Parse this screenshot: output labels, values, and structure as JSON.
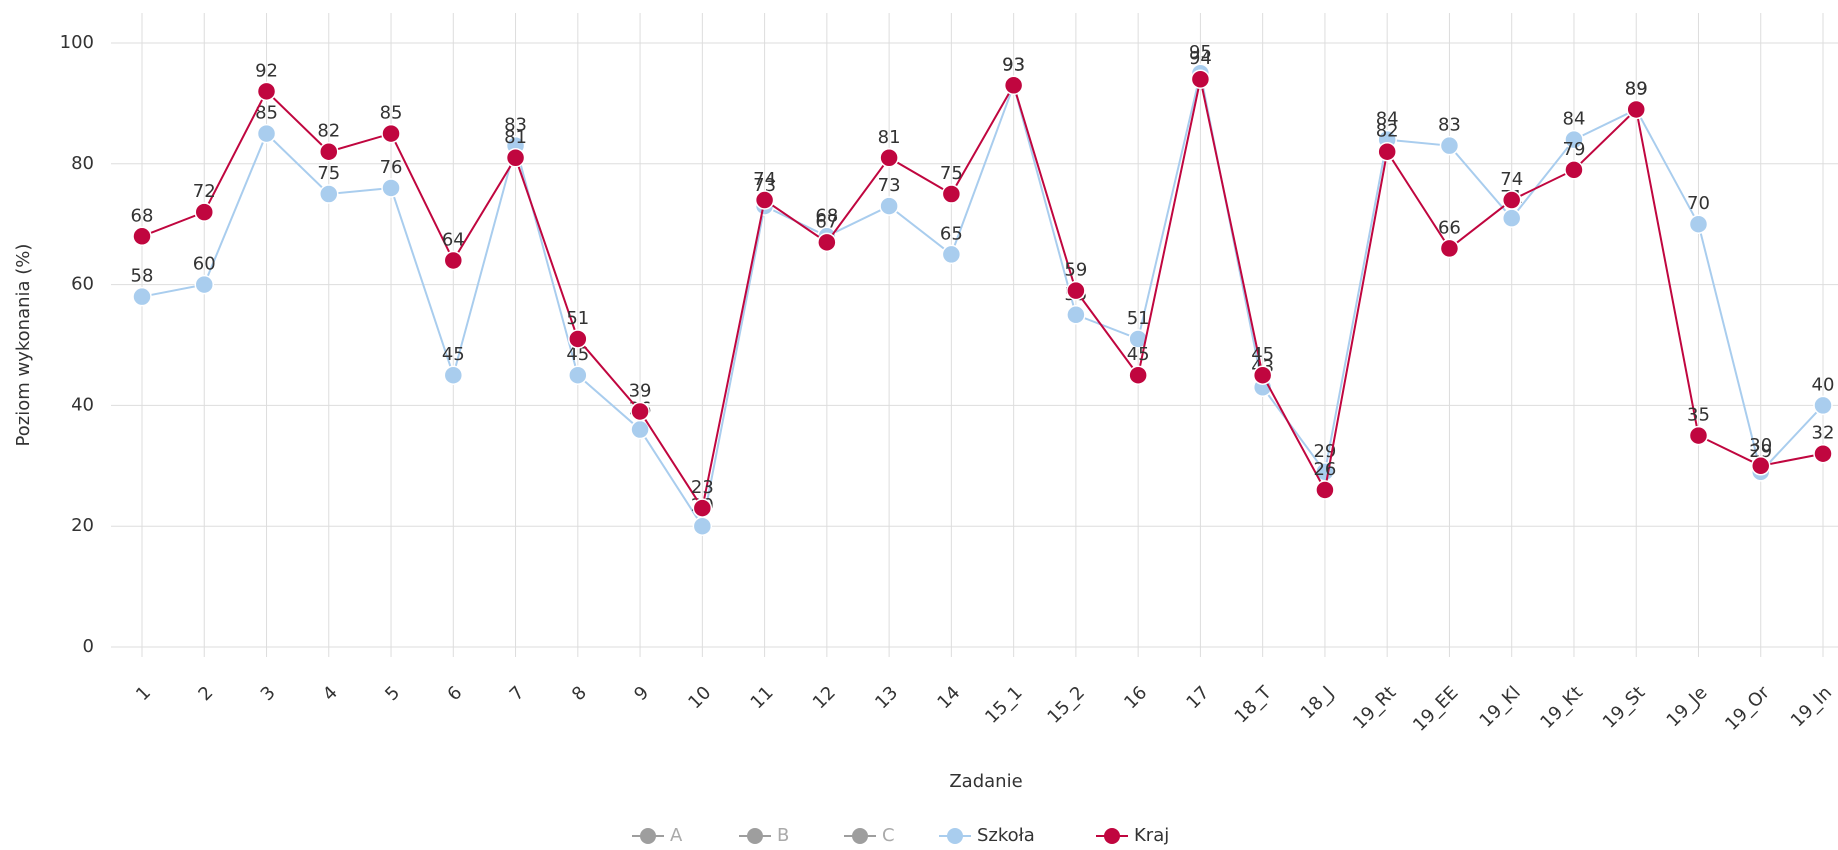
{
  "chart_data": {
    "type": "line",
    "x_label": "Zadanie",
    "y_label": "Poziom wykonania (%)",
    "categories": [
      "1",
      "2",
      "3",
      "4",
      "5",
      "6",
      "7",
      "8",
      "9",
      "10",
      "11",
      "12",
      "13",
      "14",
      "15_1",
      "15_2",
      "16",
      "17",
      "18_T",
      "18_J",
      "19_Rt",
      "19_EE",
      "19_Kl",
      "19_Kt",
      "19_St",
      "19_Je",
      "19_Or",
      "19_In"
    ],
    "series": [
      {
        "name": "A",
        "color": "#9e9e9e",
        "hidden": true,
        "values": [
          null,
          null,
          null,
          null,
          null,
          null,
          null,
          null,
          null,
          null,
          null,
          null,
          null,
          null,
          null,
          null,
          null,
          null,
          null,
          null,
          null,
          null,
          null,
          null,
          null,
          null,
          null,
          null
        ]
      },
      {
        "name": "B",
        "color": "#9e9e9e",
        "hidden": true,
        "values": [
          null,
          null,
          null,
          null,
          null,
          null,
          null,
          null,
          null,
          null,
          null,
          null,
          null,
          null,
          null,
          null,
          null,
          null,
          null,
          null,
          null,
          null,
          null,
          null,
          null,
          null,
          null,
          null
        ]
      },
      {
        "name": "C",
        "color": "#9e9e9e",
        "hidden": true,
        "values": [
          null,
          null,
          null,
          null,
          null,
          null,
          null,
          null,
          null,
          null,
          null,
          null,
          null,
          null,
          null,
          null,
          null,
          null,
          null,
          null,
          null,
          null,
          null,
          null,
          null,
          null,
          null,
          null
        ]
      },
      {
        "name": "Szkoła",
        "color": "#a9cdee",
        "values": [
          58,
          60,
          85,
          75,
          76,
          45,
          83,
          45,
          36,
          20,
          73,
          68,
          73,
          65,
          93,
          55,
          51,
          95,
          43,
          29,
          84,
          83,
          71,
          84,
          89,
          70,
          29,
          40
        ]
      },
      {
        "name": "Kraj",
        "color": "#c0063f",
        "values": [
          68,
          72,
          92,
          82,
          85,
          64,
          81,
          51,
          39,
          23,
          74,
          67,
          81,
          75,
          93,
          59,
          45,
          94,
          45,
          26,
          82,
          66,
          74,
          79,
          89,
          35,
          30,
          32
        ]
      }
    ],
    "ylim": [
      0,
      100
    ],
    "yticks": [
      0,
      20,
      40,
      60,
      80,
      100
    ],
    "grid": true
  }
}
